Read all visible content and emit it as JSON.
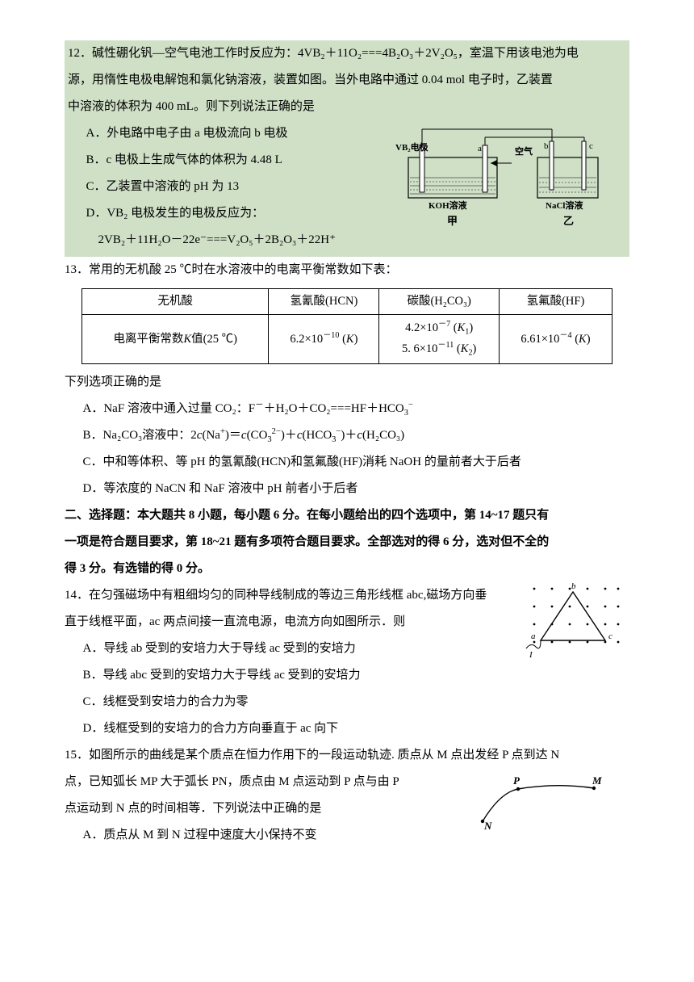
{
  "q12": {
    "number": "12．",
    "stem_a": "碱性硼化钒—空气电池工作时反应为：4VB₂＋11O₂===4B₂O₃＋2V₂O₅，室温下用该电池为电",
    "stem_b": "源，用惰性电极电解饱和氯化钠溶液，装置如图。当外电路中通过 0.04 mol 电子时，乙装置",
    "stem_c": "中溶液的体积为 400 mL。则下列说法正确的是",
    "A": "A．外电路中电子由 a 电极流向 b 电极",
    "B": "B．c 电极上生成气体的体积为 4.48 L",
    "C": "C．乙装置中溶液的 pH 为 13",
    "D": "D．VB₂ 电极发生的电极反应为：",
    "eq": "2VB₂＋11H₂O－22e⁻===V₂O₅＋2B₂O₃＋22H⁺",
    "diagram": {
      "labels": {
        "vb2": "VB₂电极",
        "koh": "KOH溶液",
        "nacl": "NaCl溶液",
        "air": "空气",
        "jia": "甲",
        "yi": "乙",
        "a": "a",
        "b": "b",
        "c": "c"
      },
      "colors": {
        "bg": "#cfe0c7",
        "wire": "#000",
        "liquid_pattern": "#555"
      }
    }
  },
  "q13": {
    "number": "13．",
    "stem": "常用的无机酸 25 ℃时在水溶液中的电离平衡常数如下表：",
    "table": {
      "headers": [
        "无机酸",
        "氢氰酸(HCN)",
        "碳酸(H₂CO₃)",
        "氢氟酸(HF)"
      ],
      "row_label_html": "电离平衡常数<span class=\"it\">K</span>值(25 ℃)",
      "hcn_html": "6.2×10<sup>－10</sup> (<span class=\"it\">K</span>)",
      "h2co3_html": "4.2×10<sup>－7</sup> (<span class=\"it\">K</span><sub>1</sub>)<br>5. 6×10<sup>－11</sup> (<span class=\"it\">K</span><sub>2</sub>)",
      "hf_html": "6.61×10<sup>－4</sup> (<span class=\"it\">K</span>)"
    },
    "prompt": "下列选项正确的是",
    "A_html": "A．NaF 溶液中通入过量 CO₂：F<sup>－</sup>＋H₂O＋CO₂===HF＋HCO<sub>3</sub><sup>−</sup>",
    "B_html": "B．Na₂CO₃溶液中：2<span class=\"it\">c</span>(Na<sup>+</sup>)＝<span class=\"it\">c</span>(CO<sub>3</sub><sup>2−</sup>)＋<span class=\"it\">c</span>(HCO<sub>3</sub><sup>−</sup>)＋<span class=\"it\">c</span>(H₂CO₃)",
    "C": "C．中和等体积、等 pH 的氢氰酸(HCN)和氢氟酸(HF)消耗 NaOH 的量前者大于后者",
    "D": "D．等浓度的 NaCN 和 NaF 溶液中 pH 前者小于后者"
  },
  "section2": {
    "line1": "二、选择题：本大题共 8 小题，每小题 6 分。在每小题给出的四个选项中，第 14~17 题只有",
    "line2": "一项是符合题目要求，第 18~21 题有多项符合题目要求。全部选对的得 6 分，选对但不全的",
    "line3": "得 3 分。有选错的得 0 分。"
  },
  "q14": {
    "number": "14．",
    "stem_a": "在匀强磁场中有粗细均匀的同种导线制成的等边三角形线框 abc,磁场方向垂",
    "stem_b": "直于线框平面，ac 两点间接一直流电源，电流方向如图所示．则",
    "A": "A．导线 ab 受到的安培力大于导线 ac 受到的安培力",
    "B": "B．导线 abc 受到的安培力大于导线 ac 受到的安培力",
    "C": "C．线框受到安培力的合力为零",
    "D": "D．线框受到的安培力的合力方向垂直于 ac 向下",
    "diagram": {
      "labels": {
        "a": "a",
        "b": "b",
        "c": "c",
        "I": "I"
      }
    }
  },
  "q15": {
    "number": "15．",
    "stem_a": "如图所示的曲线是某个质点在恒力作用下的一段运动轨迹. 质点从 M 点出发经 P 点到达 N",
    "stem_b": "点，已知弧长 MP 大于弧长 PN，质点由 M 点运动到 P 点与由 P",
    "stem_c": "点运动到 N 点的时间相等．下列说法中正确的是",
    "A": "A．质点从 M 到 N 过程中速度大小保持不变",
    "diagram": {
      "labels": {
        "P": "P",
        "M": "M",
        "N": "N"
      }
    }
  }
}
